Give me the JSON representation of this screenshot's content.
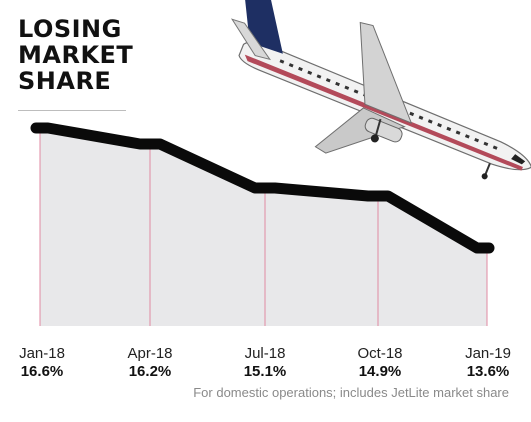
{
  "title_lines": [
    "LOSING",
    "MARKET",
    "SHARE"
  ],
  "footnote": "For domestic operations; includes JetLite market share",
  "illustration": "jet-airways-airplane",
  "chart_data": {
    "type": "area",
    "categories": [
      "Jan-18",
      "Apr-18",
      "Jul-18",
      "Oct-18",
      "Jan-19"
    ],
    "values": [
      16.6,
      16.2,
      15.1,
      14.9,
      13.6
    ],
    "value_labels": [
      "16.6%",
      "16.2%",
      "15.1%",
      "14.9%",
      "13.6%"
    ],
    "ylabel": "",
    "xlabel": "",
    "ylim": [
      10.0,
      17.0
    ],
    "grid": false,
    "colors": {
      "line": "#0a0a0a",
      "fill": "#e8e8ea",
      "guides": "#e08aa3"
    }
  }
}
